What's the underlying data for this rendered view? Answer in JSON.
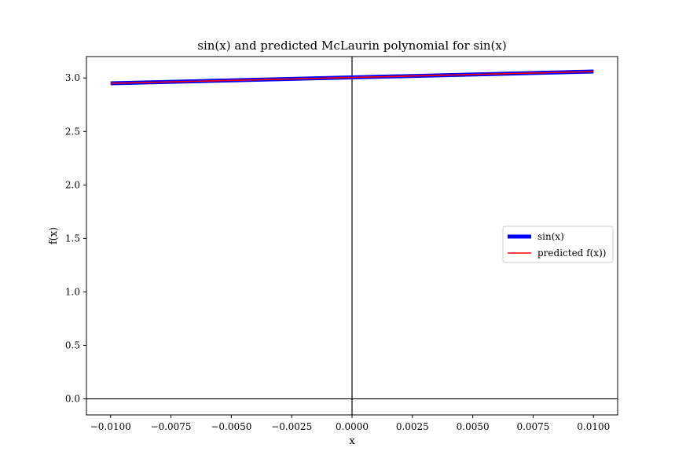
{
  "chart_data": {
    "type": "line",
    "title": "sin(x) and predicted McLaurin polynomial for sin(x)",
    "xlabel": "x",
    "ylabel": "f(x)",
    "xlim": [
      -0.011,
      0.011
    ],
    "ylim": [
      -0.15,
      3.2
    ],
    "xticks": [
      -0.01,
      -0.0075,
      -0.005,
      -0.0025,
      0.0,
      0.0025,
      0.005,
      0.0075,
      0.01
    ],
    "xtick_labels": [
      "−0.0100",
      "−0.0075",
      "−0.0050",
      "−0.0025",
      "0.0000",
      "0.0025",
      "0.0050",
      "0.0075",
      "0.0100"
    ],
    "yticks": [
      0.0,
      0.5,
      1.0,
      1.5,
      2.0,
      2.5,
      3.0
    ],
    "ytick_labels": [
      "0.0",
      "0.5",
      "1.0",
      "1.5",
      "2.0",
      "2.5",
      "3.0"
    ],
    "grid": false,
    "legend_placement": "center-right",
    "reference_lines": {
      "x": 0,
      "y": 0,
      "color": "#000000"
    },
    "series": [
      {
        "name": "sin(x)",
        "color": "#0000ff",
        "line_style": "thick",
        "x": [
          -0.01,
          0.01
        ],
        "y": [
          2.95,
          3.06
        ]
      },
      {
        "name": "predicted f(x))",
        "color": "#ff0000",
        "line_style": "thin",
        "x": [
          -0.01,
          0.01
        ],
        "y": [
          2.95,
          3.06
        ]
      }
    ]
  }
}
